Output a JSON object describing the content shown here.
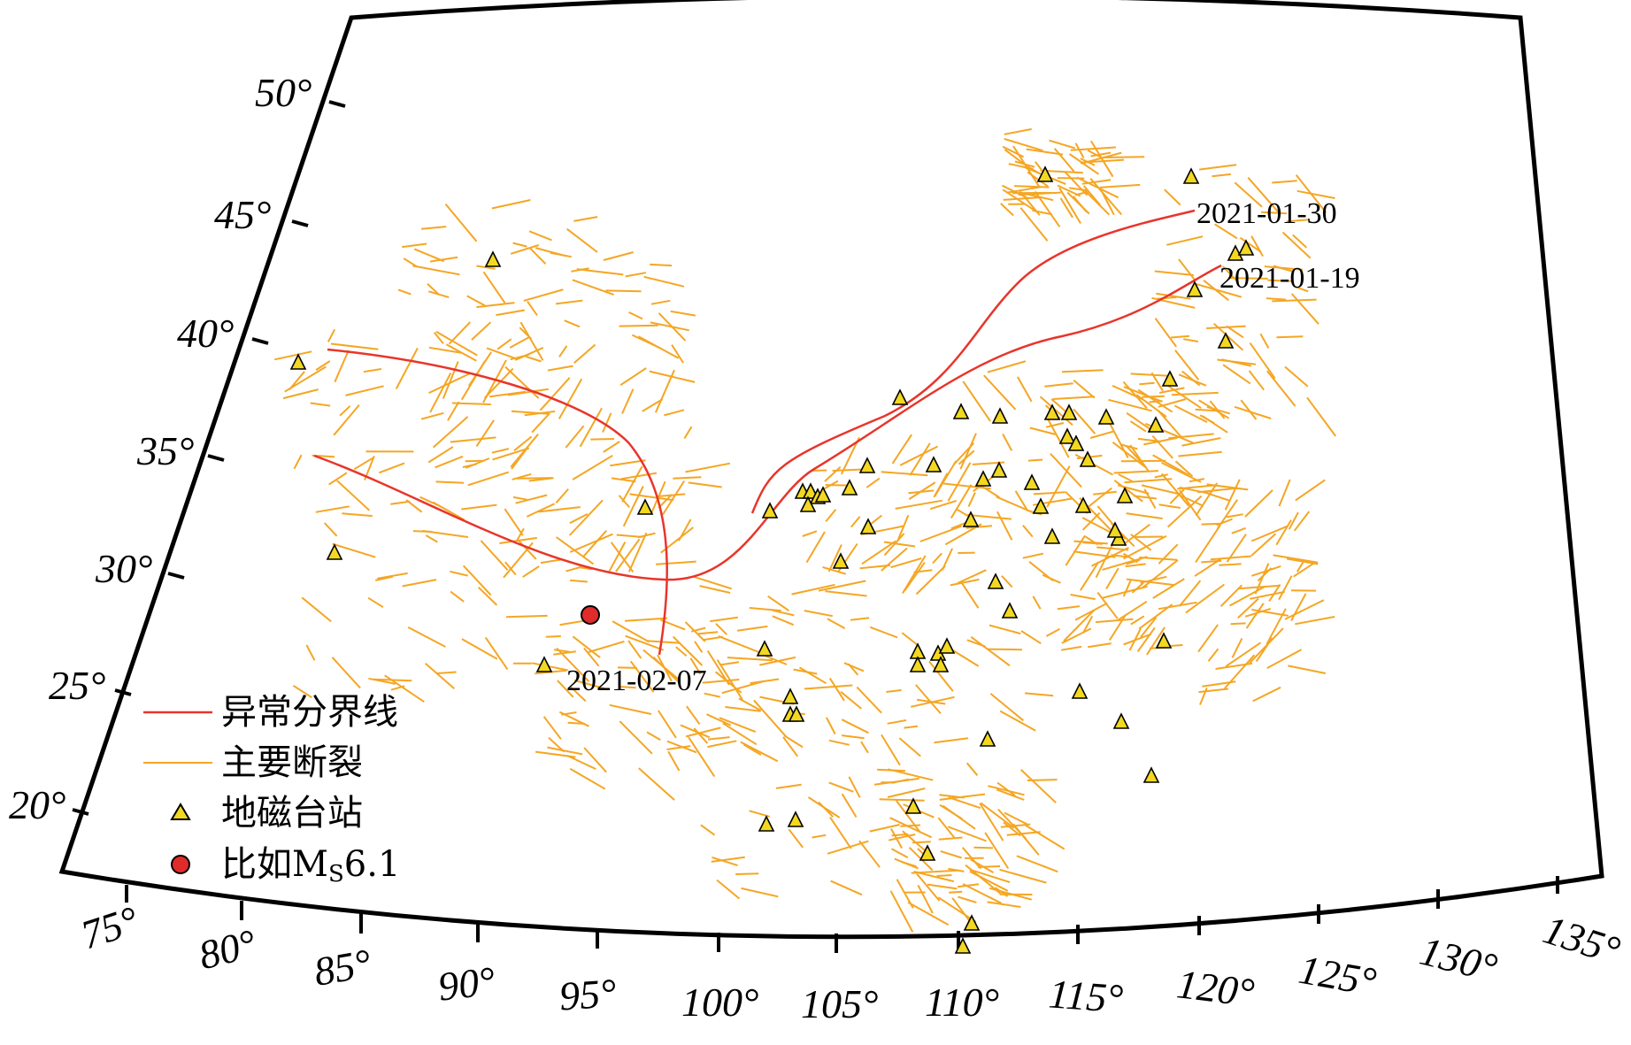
{
  "map": {
    "latitude_labels": [
      "20°",
      "25°",
      "30°",
      "35°",
      "40°",
      "45°",
      "50°"
    ],
    "longitude_labels": [
      "75°",
      "80°",
      "85°",
      "90°",
      "95°",
      "100°",
      "105°",
      "110°",
      "115°",
      "120°",
      "125°",
      "130°",
      "135°"
    ],
    "anomaly_lines": [
      {
        "label": "2021-01-30",
        "color": "#e8352b"
      },
      {
        "label": "2021-01-19",
        "color": "#e8352b"
      },
      {
        "label": "2021-02-07",
        "color": "#e8352b"
      }
    ],
    "fault_color": "#f5a623",
    "station_color": "#f2d820",
    "epicenter_color": "#e02b2b"
  },
  "legend": {
    "anomaly_boundary": "异常分界线",
    "major_faults": "主要断裂",
    "geomagnetic_stations": "地磁台站",
    "earthquake_prefix": "比如M",
    "earthquake_sub": "S",
    "earthquake_mag": "6.1"
  }
}
